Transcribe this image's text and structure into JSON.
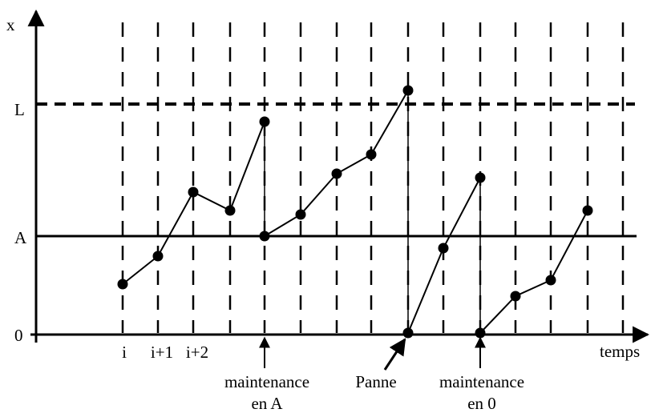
{
  "axes": {
    "y_label": "x",
    "x_label": "temps",
    "levels": [
      "L",
      "A",
      "0"
    ]
  },
  "steps": [
    "i",
    "i+1",
    "i+2"
  ],
  "annotations": [
    {
      "lines": [
        "maintenance",
        "en A"
      ]
    },
    {
      "lines": [
        "Panne"
      ]
    },
    {
      "lines": [
        "maintenance",
        "en 0"
      ]
    }
  ]
}
